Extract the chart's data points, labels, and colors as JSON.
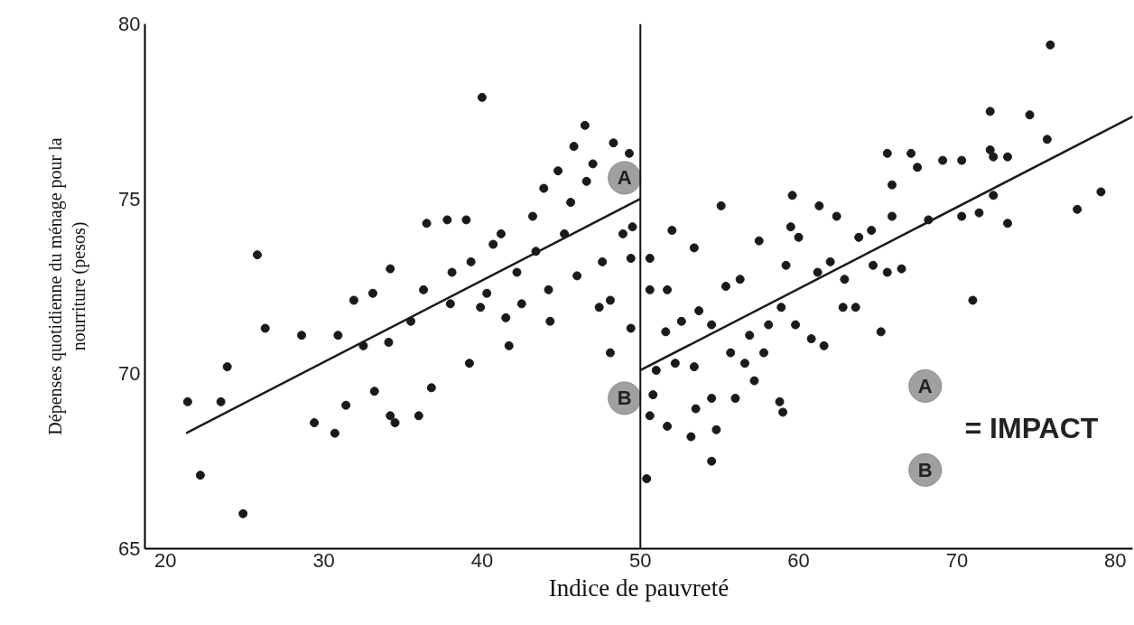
{
  "chart_data": {
    "type": "scatter",
    "xlabel": "Indice de pauvreté",
    "ylabel": "Dépenses quotidienne du ménage pour la nourriture (pesos)",
    "xlim": [
      18.7,
      81.1
    ],
    "ylim": [
      65,
      80
    ],
    "xticks": [
      20,
      30,
      40,
      50,
      60,
      70,
      80
    ],
    "yticks": [
      65,
      70,
      75,
      80
    ],
    "grid": false,
    "marker": "circle",
    "series": [
      {
        "color": "#1a1a1a",
        "x": [
          21.4,
          22.2,
          23.5,
          23.9,
          24.9,
          25.8,
          26.3,
          28.6,
          29.4,
          30.9,
          30.7,
          31.4,
          31.9,
          32.5,
          33.1,
          33.2,
          34.1,
          34.2,
          34.5,
          34.2,
          35.5,
          36.0,
          36.5,
          36.3,
          36.8,
          37.8,
          38.1,
          38.0,
          39.0,
          39.2,
          39.3,
          40.0,
          39.9,
          40.3,
          40.7,
          41.2,
          41.5,
          41.7,
          42.2,
          42.5,
          43.2,
          43.4,
          43.9,
          44.2,
          44.3,
          44.8,
          45.2,
          45.6,
          45.8,
          46.0,
          46.5,
          46.6,
          47.0,
          47.4,
          47.6,
          48.1,
          48.3,
          48.9,
          49.3,
          49.4,
          49.5,
          49.4,
          48.1
        ],
        "values": [
          69.2,
          67.1,
          69.2,
          70.2,
          66.0,
          73.4,
          71.3,
          71.1,
          68.6,
          71.1,
          68.3,
          69.1,
          72.1,
          70.8,
          72.3,
          69.5,
          70.9,
          68.8,
          68.6,
          73.0,
          71.5,
          68.8,
          74.3,
          72.4,
          69.6,
          74.4,
          72.9,
          72.0,
          74.4,
          70.3,
          73.2,
          77.9,
          71.9,
          72.3,
          73.7,
          74.0,
          71.6,
          70.8,
          72.9,
          72.0,
          74.5,
          73.5,
          75.3,
          72.4,
          71.5,
          75.8,
          74.0,
          74.9,
          76.5,
          72.8,
          77.1,
          75.5,
          76.0,
          71.9,
          73.2,
          70.6,
          76.6,
          74.0,
          76.3,
          73.3,
          74.2,
          71.3,
          72.1
        ]
      },
      {
        "color": "#1a1a1a",
        "x": [
          50.4,
          50.6,
          50.8,
          51.0,
          50.6,
          50.6,
          51.7,
          51.6,
          52.0,
          52.2,
          52.6,
          51.7,
          53.2,
          53.4,
          53.5,
          53.4,
          53.7,
          54.5,
          54.5,
          54.8,
          55.1,
          55.4,
          54.5,
          55.7,
          56.0,
          56.3,
          56.6,
          56.9,
          57.2,
          57.5,
          57.8,
          58.1,
          58.9,
          58.8,
          59.0,
          59.2,
          59.5,
          59.8,
          59.6,
          60.0,
          60.8,
          61.2,
          61.3,
          61.6,
          62.0,
          62.4,
          62.8,
          62.9,
          63.8,
          63.6,
          64.6,
          64.7,
          65.2,
          65.6,
          65.9,
          65.9,
          65.6,
          66.5,
          67.1,
          67.5,
          68.2,
          69.1,
          70.3,
          70.3,
          71.0,
          71.4,
          72.1,
          72.1,
          72.3,
          72.3,
          73.2,
          73.2,
          74.6,
          75.7,
          75.9,
          77.6,
          79.1
        ],
        "values": [
          67.0,
          68.8,
          69.4,
          70.1,
          72.4,
          73.3,
          68.5,
          71.2,
          74.1,
          70.3,
          71.5,
          72.4,
          68.2,
          70.2,
          69.0,
          73.6,
          71.8,
          71.4,
          67.5,
          68.4,
          74.8,
          72.5,
          69.3,
          70.6,
          69.3,
          72.7,
          70.3,
          71.1,
          69.8,
          73.8,
          70.6,
          71.4,
          71.9,
          69.2,
          68.9,
          73.1,
          74.2,
          71.4,
          75.1,
          73.9,
          71.0,
          72.9,
          74.8,
          70.8,
          73.2,
          74.5,
          71.9,
          72.7,
          73.9,
          71.9,
          74.1,
          73.1,
          71.2,
          72.9,
          74.5,
          75.4,
          76.3,
          73.0,
          76.3,
          75.9,
          74.4,
          76.1,
          76.1,
          74.5,
          72.1,
          74.6,
          76.4,
          77.5,
          76.2,
          75.1,
          74.3,
          76.2,
          77.4,
          76.7,
          79.4,
          74.7,
          75.2
        ]
      },
      {
        "type": "line",
        "marker": "none",
        "color": "#1a1a1a",
        "x": [
          21.3,
          50
        ],
        "values": [
          68.3,
          75.0
        ]
      },
      {
        "type": "line",
        "marker": "none",
        "color": "#1a1a1a",
        "x": [
          50,
          81.1
        ],
        "values": [
          70.1,
          77.35
        ]
      }
    ],
    "ref_lines": [
      {
        "axis": "x",
        "value": 50,
        "label": null
      }
    ],
    "annotations": [
      {
        "text": "A",
        "x": 49,
        "y": 75.6
      },
      {
        "text": "B",
        "x": 49,
        "y": 69.3
      },
      "A",
      "B",
      "= IMPACT"
    ]
  }
}
